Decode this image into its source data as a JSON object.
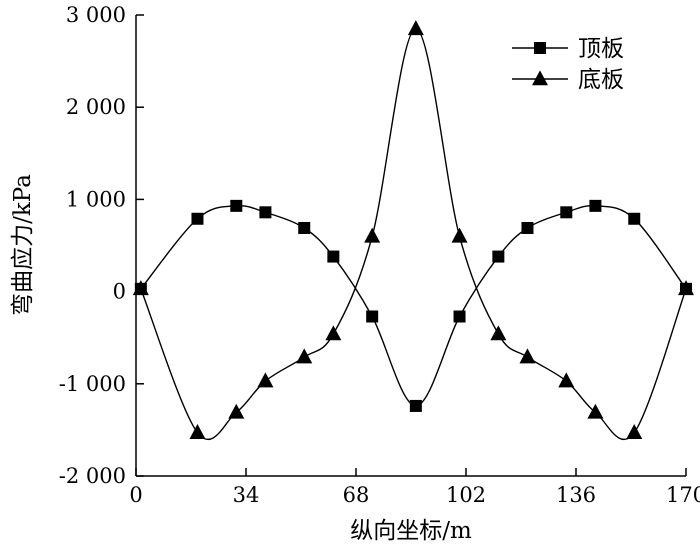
{
  "chart_data": {
    "type": "line",
    "xlabel": "纵向坐标/m",
    "ylabel": "弯曲应力/kPa",
    "xlim": [
      0,
      170
    ],
    "ylim": [
      -2000,
      3000
    ],
    "x_ticks": [
      0,
      34,
      68,
      102,
      136,
      170
    ],
    "x_tick_labels": [
      "0",
      "34",
      "68",
      "102",
      "136",
      "170"
    ],
    "y_ticks": [
      3000,
      2000,
      1000,
      0,
      -1000,
      -2000
    ],
    "y_tick_labels": [
      "3 000",
      "2 000",
      "1 000",
      "0",
      "-1 000",
      "-2 000"
    ],
    "legend_position": "top-right",
    "grid": false,
    "series": [
      {
        "name": "顶板",
        "marker": "square",
        "x": [
          1.5,
          19,
          31,
          40,
          52,
          61,
          73,
          86.5,
          100,
          112,
          121,
          133,
          142,
          154,
          170
        ],
        "y": [
          30,
          790,
          930,
          860,
          690,
          380,
          -270,
          -1240,
          -270,
          380,
          690,
          860,
          930,
          790,
          30
        ]
      },
      {
        "name": "底板",
        "marker": "triangle",
        "x": [
          1.5,
          19,
          31,
          40,
          52,
          61,
          73,
          86.5,
          100,
          112,
          121,
          133,
          142,
          154,
          170
        ],
        "y": [
          30,
          -1530,
          -1310,
          -970,
          -710,
          -460,
          600,
          2850,
          600,
          -460,
          -710,
          -970,
          -1310,
          -1530,
          30
        ]
      }
    ]
  }
}
